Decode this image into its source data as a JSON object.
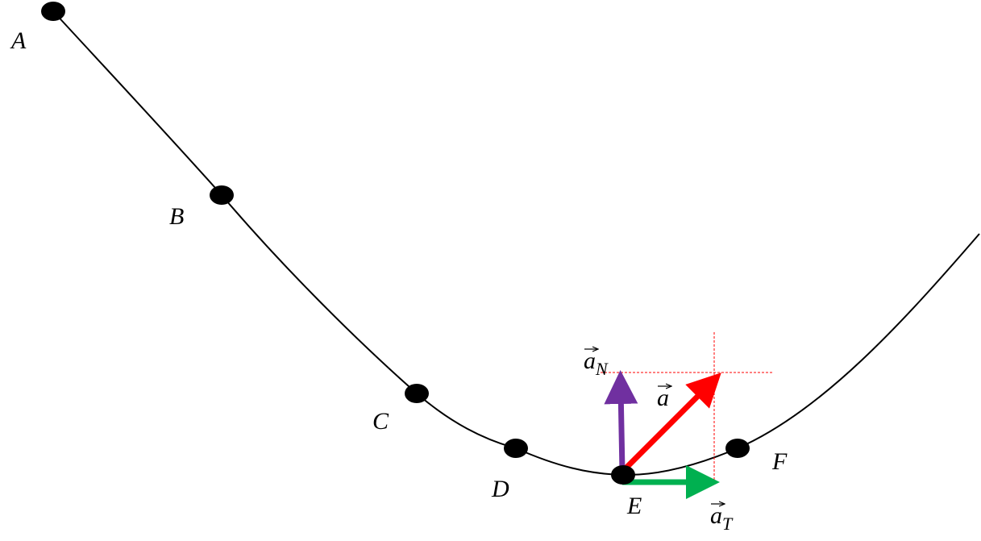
{
  "points": [
    {
      "label": "A"
    },
    {
      "label": "B"
    },
    {
      "label": "C"
    },
    {
      "label": "D"
    },
    {
      "label": "E"
    },
    {
      "label": "F"
    }
  ],
  "vectors": [
    {
      "symbol": "a",
      "subscript": "N"
    },
    {
      "symbol": "a"
    },
    {
      "symbol": "a",
      "subscript": "T"
    }
  ]
}
